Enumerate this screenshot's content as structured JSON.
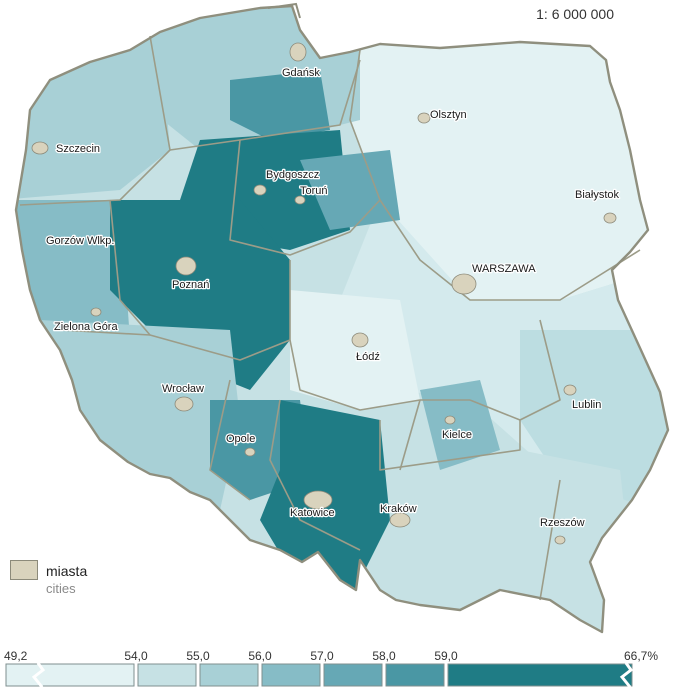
{
  "scale": "1: 6 000 000",
  "legend": {
    "cities_pl": "miasta",
    "cities_en": "cities",
    "cities_color": "#d9d3bd"
  },
  "classes": {
    "breaks": [
      "49,2",
      "54,0",
      "55,0",
      "56,0",
      "57,0",
      "58,0",
      "59,0",
      "66,7%"
    ],
    "colors": [
      "#e3f2f3",
      "#c6e1e4",
      "#a8d0d6",
      "#86bcc6",
      "#66a8b5",
      "#4a97a4",
      "#1f7c85"
    ]
  },
  "cities": [
    {
      "name": "Gdańsk"
    },
    {
      "name": "Olsztyn"
    },
    {
      "name": "Szczecin"
    },
    {
      "name": "Bydgoszcz"
    },
    {
      "name": "Toruń"
    },
    {
      "name": "Białystok"
    },
    {
      "name": "Gorzów Wlkp."
    },
    {
      "name": "WARSZAWA"
    },
    {
      "name": "Poznań"
    },
    {
      "name": "Zielona Góra"
    },
    {
      "name": "Łódź"
    },
    {
      "name": "Wrocław"
    },
    {
      "name": "Lublin"
    },
    {
      "name": "Opole"
    },
    {
      "name": "Kielce"
    },
    {
      "name": "Katowice"
    },
    {
      "name": "Kraków"
    },
    {
      "name": "Rzeszów"
    }
  ]
}
